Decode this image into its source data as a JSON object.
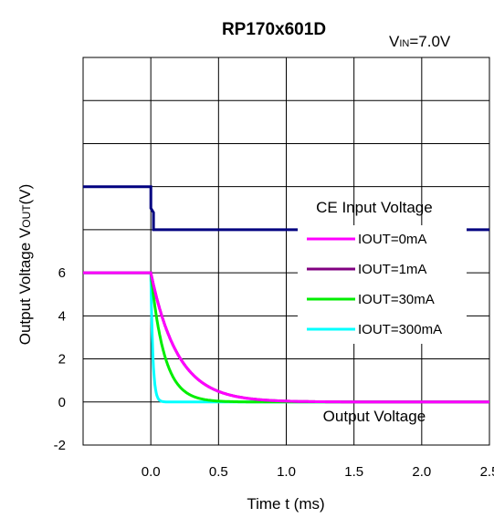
{
  "chart_data": {
    "type": "line",
    "title": "RP170x601D",
    "condition_label": "V",
    "condition_sub": "IN",
    "condition_value": "=7.0V",
    "xlabel": "Time t (ms)",
    "ylabel_prefix": "Output Voltage V",
    "ylabel_sub": "OUT",
    "ylabel_suffix": "(V)",
    "xlim": [
      -0.5,
      2.5
    ],
    "ylim": [
      -2,
      16
    ],
    "grid": true,
    "legend_position": "right",
    "x_ticks": [
      {
        "value": 0.0,
        "label": "0.0"
      },
      {
        "value": 0.5,
        "label": "0.5"
      },
      {
        "value": 1.0,
        "label": "1.0"
      },
      {
        "value": 1.5,
        "label": "1.5"
      },
      {
        "value": 2.0,
        "label": "2.0"
      },
      {
        "value": 2.5,
        "label": "2.5"
      }
    ],
    "y_ticks": [
      {
        "value": -2,
        "label": "-2"
      },
      {
        "value": 0,
        "label": "0"
      },
      {
        "value": 2,
        "label": "2"
      },
      {
        "value": 4,
        "label": "4"
      },
      {
        "value": 6,
        "label": "6"
      }
    ],
    "annotations": [
      {
        "text": "CE Input Voltage",
        "x": 1.65,
        "y": 8.8
      },
      {
        "text": "Output Voltage",
        "x": 1.65,
        "y": -0.9
      }
    ],
    "ce_series": {
      "color": "#000080",
      "x": [
        -0.5,
        0.0,
        0.0,
        0.02,
        0.02,
        2.5
      ],
      "y": [
        10,
        10,
        9,
        8.8,
        8,
        8
      ]
    },
    "series": [
      {
        "name": "IOUT=0mA",
        "color": "#ff00ff",
        "tau": 0.2
      },
      {
        "name": "IOUT=1mA",
        "color": "#800080",
        "tau": 0.2
      },
      {
        "name": "IOUT=30mA",
        "color": "#00ee00",
        "tau": 0.1
      },
      {
        "name": "IOUT=300mA",
        "color": "#00ffff",
        "tau": 0.015
      }
    ],
    "initial_output": 6.0,
    "discharge_start": 0.0
  }
}
